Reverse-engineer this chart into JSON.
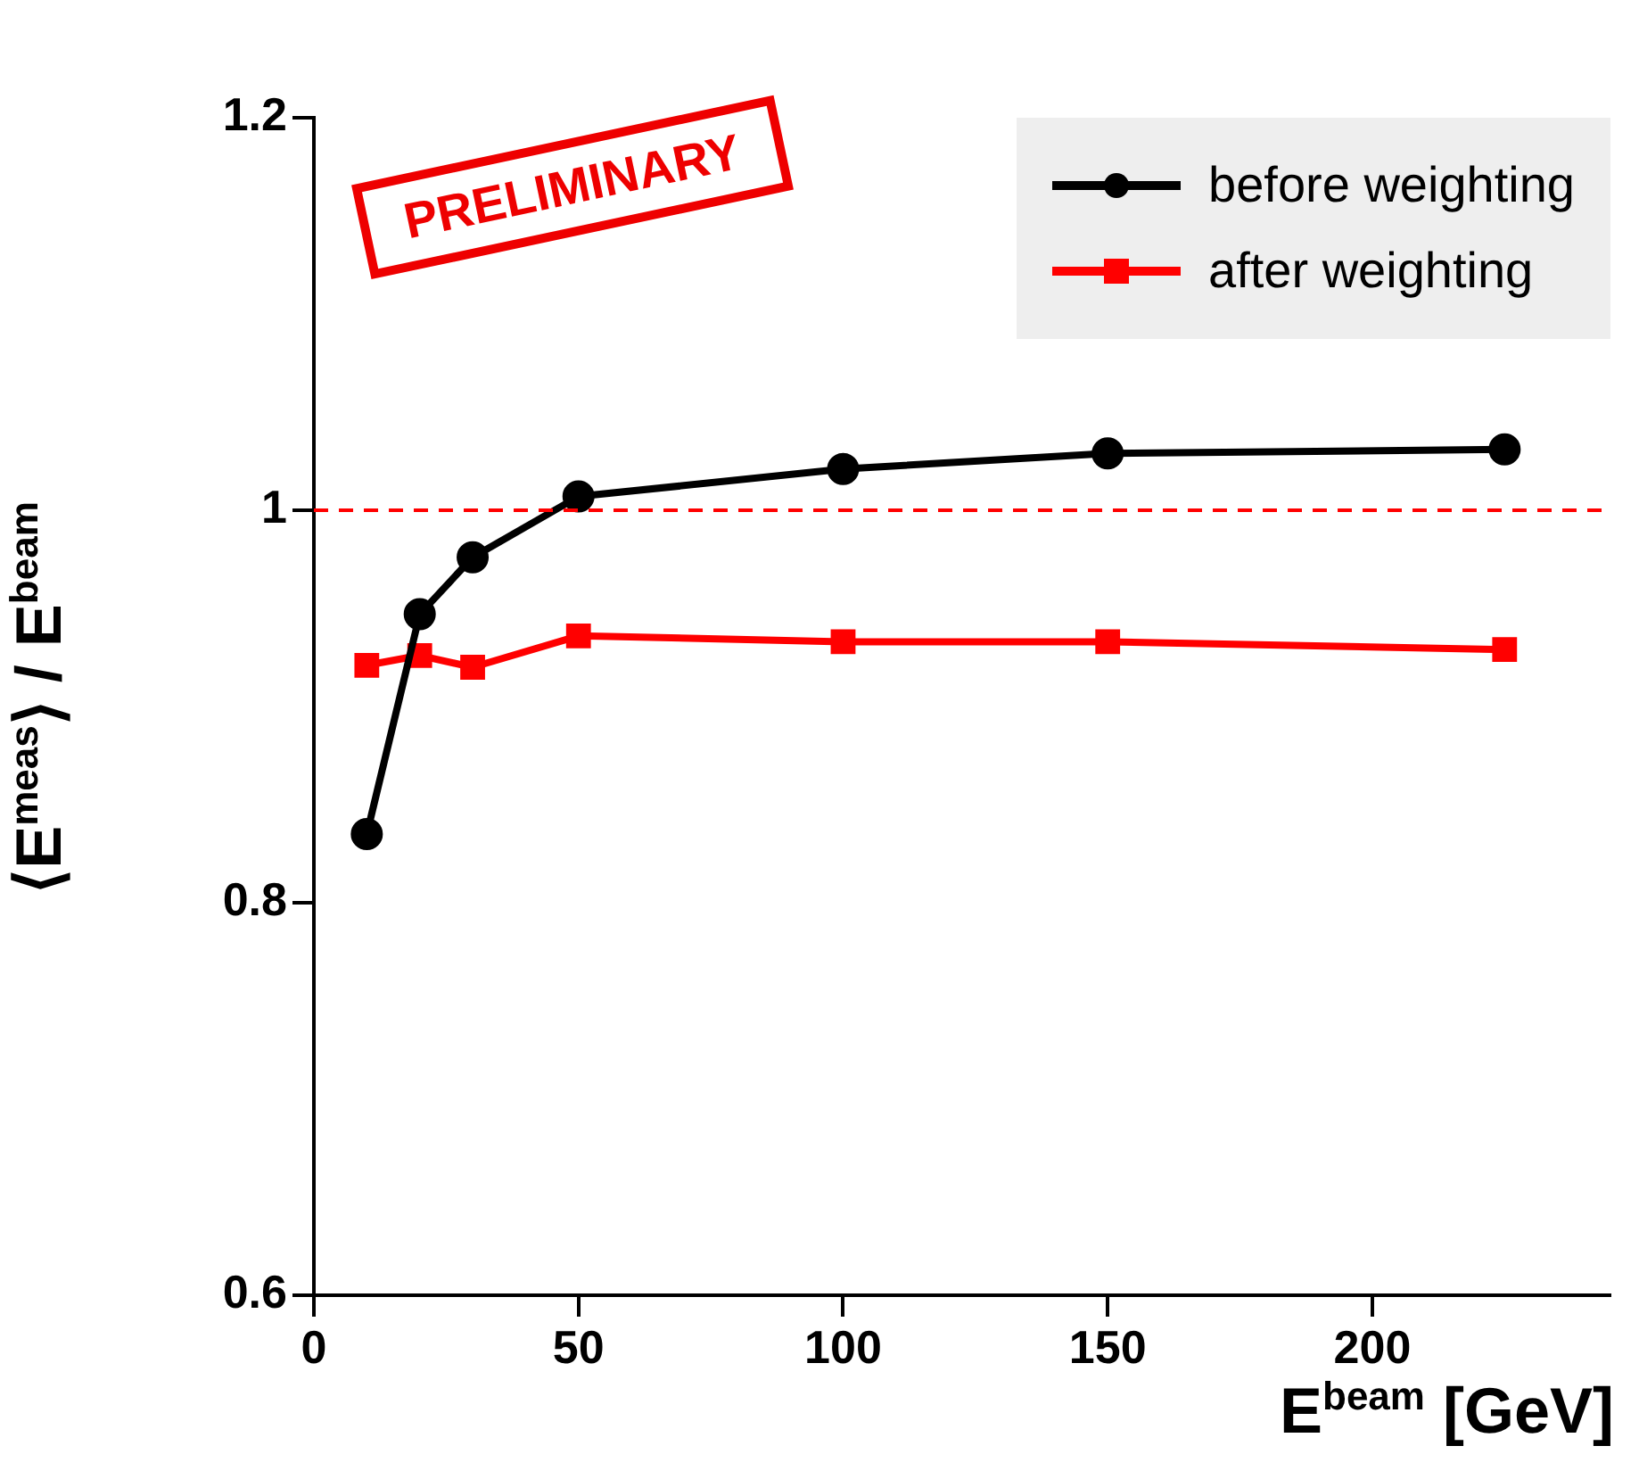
{
  "chart_data": {
    "type": "line",
    "xlabel": "E$^{beam}$ [GeV]",
    "ylabel": "⟨E$^{meas}$⟩ / E$^{beam}$",
    "x": [
      10,
      20,
      30,
      50,
      100,
      150,
      225
    ],
    "series": [
      {
        "name": "before weighting",
        "color": "#000000",
        "marker": "circle",
        "values": [
          0.835,
          0.947,
          0.976,
          1.007,
          1.021,
          1.029,
          1.031
        ]
      },
      {
        "name": "after weighting",
        "color": "#ff0000",
        "marker": "square",
        "values": [
          0.921,
          0.926,
          0.92,
          0.936,
          0.933,
          0.933,
          0.929
        ]
      }
    ],
    "xlim": [
      0,
      245
    ],
    "xticks": [
      0,
      50,
      100,
      150,
      200
    ],
    "ylim": [
      0.6,
      1.2
    ],
    "yticks": [
      0.6,
      0.8,
      1,
      1.2
    ],
    "ref_lines": [
      {
        "axis": "y",
        "value": 1,
        "color": "#ff0000",
        "line_style": "dashed"
      }
    ],
    "annotations": [
      "PRELIMINARY"
    ],
    "legend": "top right",
    "grid": false,
    "line_style": "solid"
  }
}
